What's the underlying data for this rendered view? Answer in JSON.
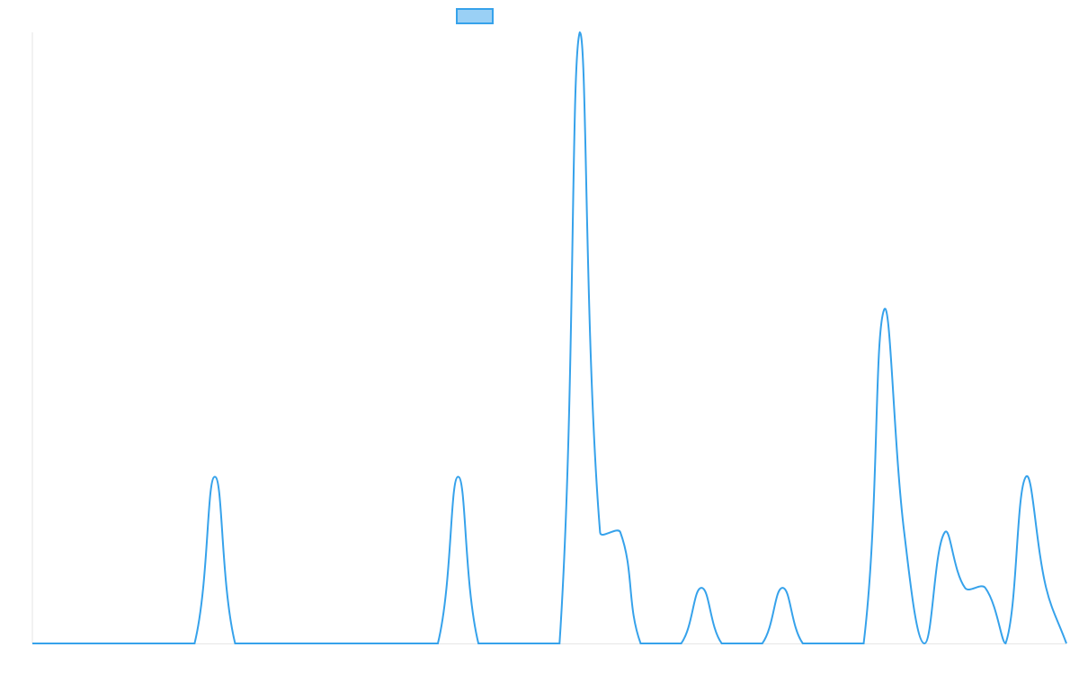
{
  "chart_data": {
    "type": "line",
    "categories": [
      null,
      null,
      null,
      null,
      null,
      null,
      null,
      null,
      null,
      null,
      null,
      null,
      null,
      null,
      null,
      null,
      null,
      null,
      null,
      null,
      null,
      null,
      null,
      null,
      null,
      null,
      null,
      null,
      null,
      null,
      null,
      null,
      null,
      null,
      null,
      null,
      null,
      null,
      null,
      null,
      null,
      null,
      null,
      null,
      null,
      null,
      null,
      null,
      null,
      null,
      null,
      null
    ],
    "series": [
      {
        "color": "#36a2eb",
        "fill": "rgba(54,162,235,0.5)",
        "values": [
          0,
          0,
          0,
          0,
          0,
          0,
          0,
          0,
          0,
          3,
          0,
          0,
          0,
          0,
          0,
          0,
          0,
          0,
          0,
          0,
          0,
          3,
          0,
          0,
          0,
          0,
          0,
          11,
          2,
          2,
          0,
          0,
          0,
          1,
          0,
          0,
          0,
          1,
          0,
          0,
          0,
          0,
          6,
          2,
          0,
          2,
          1,
          1,
          0,
          3,
          1,
          0
        ]
      }
    ],
    "ylim": [
      0,
      11
    ]
  }
}
